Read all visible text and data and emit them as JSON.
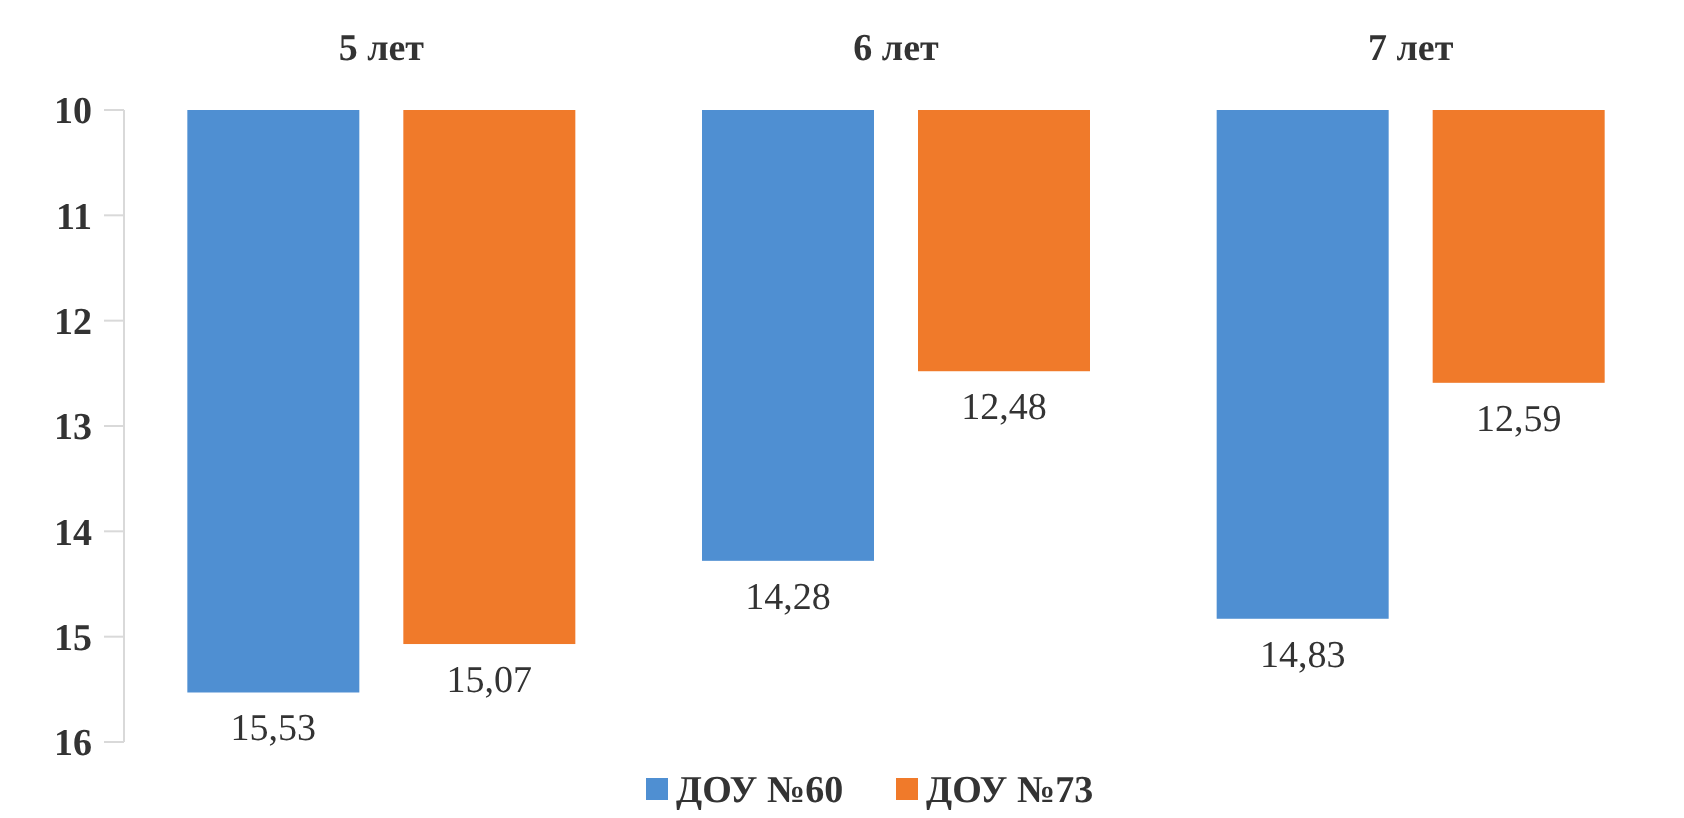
{
  "chart_data": {
    "type": "bar",
    "categories": [
      "5 лет",
      "6 лет",
      "7 лет"
    ],
    "series": [
      {
        "name": "ДОУ №60",
        "color": "#4f8fd2",
        "values": [
          15.53,
          14.28,
          14.83
        ],
        "value_labels": [
          "15,53",
          "14,28",
          "14,83"
        ]
      },
      {
        "name": "ДОУ №73",
        "color": "#f07a2a",
        "values": [
          15.07,
          12.48,
          12.59
        ],
        "value_labels": [
          "15,07",
          "12,48",
          "12,59"
        ]
      }
    ],
    "ylim": [
      16,
      10
    ],
    "yticks": [
      10,
      11,
      12,
      13,
      14,
      15,
      16
    ],
    "grid": false,
    "legend": "bottom"
  }
}
